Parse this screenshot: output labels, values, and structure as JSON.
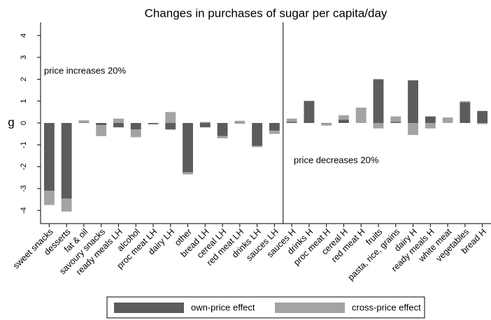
{
  "chart_data": {
    "type": "stacked_bar",
    "title": "Changes in purchases of sugar per capita/day",
    "y_label": "g",
    "categories": [
      "sweet snacks",
      "desserts",
      "fat & oil",
      "savoury snacks",
      "ready meals LH",
      "alcohol",
      "proc meat LH",
      "dairy LH",
      "other",
      "bread LH",
      "cereal LH",
      "red meat LH",
      "drinks LH",
      "sauces LH",
      "sauces H",
      "drinks H",
      "proc meat H",
      "cereal H",
      "red meat H",
      "fruits",
      "pasta, rice, grains",
      "dairy H",
      "ready meals H",
      "white meat",
      "vegetables",
      "bread H"
    ],
    "series": [
      {
        "name": "own-price effect",
        "color": "#5c5c5c",
        "values": [
          -3.1,
          -3.45,
          0.02,
          -0.1,
          -0.2,
          -0.3,
          -0.05,
          -0.3,
          -2.25,
          -0.2,
          -0.6,
          -0.02,
          -1.05,
          -0.35,
          0.05,
          1.0,
          -0.02,
          0.15,
          0.0,
          2.0,
          0.05,
          1.95,
          0.3,
          0.0,
          0.95,
          0.55
        ]
      },
      {
        "name": "cross-price effect",
        "color": "#a3a3a3",
        "values": [
          -0.65,
          -0.6,
          0.1,
          -0.5,
          0.2,
          -0.35,
          -0.02,
          0.5,
          -0.1,
          0.05,
          -0.1,
          0.1,
          -0.05,
          -0.15,
          0.15,
          0.02,
          -0.1,
          0.2,
          0.7,
          -0.25,
          0.25,
          -0.55,
          -0.25,
          0.25,
          0.05,
          -0.05
        ]
      }
    ],
    "annotations": [
      "price increases 20%",
      "price decreases 20%"
    ],
    "ylim": [
      -4.6,
      4.6
    ],
    "yticks": [
      -4,
      -3,
      -2,
      -1,
      0,
      1,
      2,
      3,
      4
    ],
    "legend": "bottom"
  }
}
